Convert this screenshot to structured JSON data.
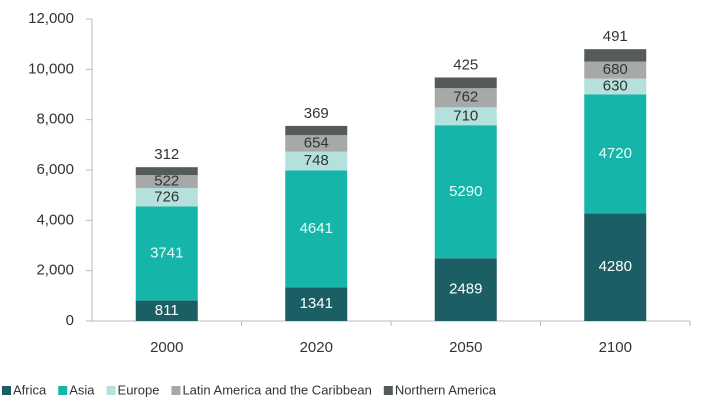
{
  "chart_data": {
    "type": "stacked_bar",
    "categories": [
      "2000",
      "2020",
      "2050",
      "2100"
    ],
    "series": [
      {
        "name": "Africa",
        "color": "#1b5f64",
        "values": [
          811,
          1341,
          2489,
          4280
        ]
      },
      {
        "name": "Asia",
        "color": "#16b5aa",
        "values": [
          3741,
          4641,
          5290,
          4720
        ]
      },
      {
        "name": "Europe",
        "color": "#b5e1dd",
        "values": [
          726,
          748,
          710,
          630
        ]
      },
      {
        "name": "Latin America and the Caribbean",
        "color": "#a7a9a9",
        "values": [
          522,
          654,
          762,
          680
        ]
      },
      {
        "name": "Northern America",
        "color": "#555b5b",
        "values": [
          312,
          369,
          425,
          491
        ]
      }
    ],
    "ylim": [
      0,
      12000
    ],
    "yticks": [
      0,
      {
        "value": 2000,
        "label": "2,000"
      },
      {
        "value": 4000,
        "label": "4,000"
      },
      {
        "value": 6000,
        "label": "6,000"
      },
      {
        "value": 8000,
        "label": "8,000"
      },
      {
        "value": 10000,
        "label": "10,000"
      },
      {
        "value": 12000,
        "label": "12,000"
      }
    ],
    "grid": false
  }
}
